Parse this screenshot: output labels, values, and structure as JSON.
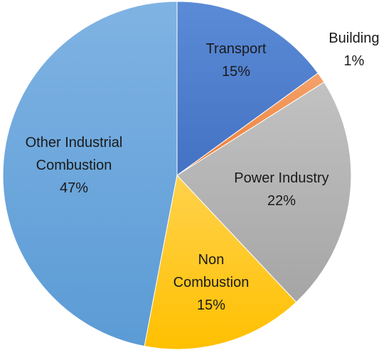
{
  "chart_data": {
    "type": "pie",
    "slices": [
      {
        "label_lines": [
          "Transport",
          "15%"
        ],
        "value": 15,
        "color": "#4472C4",
        "color_light": "#5B8BD6"
      },
      {
        "label_lines": [
          "Building",
          "1%"
        ],
        "value": 1,
        "color": "#ED7D31",
        "color_light": "#F4A26B"
      },
      {
        "label_lines": [
          "Power Industry",
          "22%"
        ],
        "value": 22,
        "color": "#A5A5A5",
        "color_light": "#C2C2C2"
      },
      {
        "label_lines": [
          "Non",
          "Combustion",
          "15%"
        ],
        "value": 15,
        "color": "#FFC000",
        "color_light": "#FFD24D"
      },
      {
        "label_lines": [
          "Other Industrial",
          "Combustion",
          "47%"
        ],
        "value": 47,
        "color": "#5B9BD5",
        "color_light": "#7FB3E3"
      }
    ],
    "start_angle": "12 o'clock",
    "direction": "clockwise"
  }
}
